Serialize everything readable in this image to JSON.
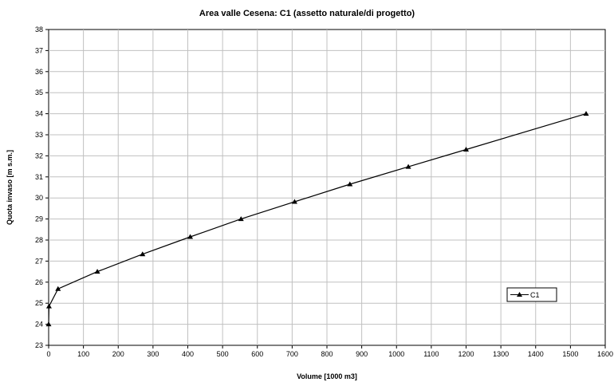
{
  "chart_data": {
    "type": "line",
    "title": "Area valle Cesena: C1 (assetto naturale/di progetto)",
    "xlabel": "Volume [1000 m3]",
    "ylabel": "Quota invaso [m s.m.]",
    "xlim": [
      0,
      1600
    ],
    "ylim": [
      23,
      38
    ],
    "x_ticks": [
      0,
      100,
      200,
      300,
      400,
      500,
      600,
      700,
      800,
      900,
      1000,
      1100,
      1200,
      1300,
      1400,
      1500,
      1600
    ],
    "y_ticks": [
      23,
      24,
      25,
      26,
      27,
      28,
      29,
      30,
      31,
      32,
      33,
      34,
      35,
      36,
      37,
      38
    ],
    "grid": true,
    "legend_position": "right",
    "series": [
      {
        "name": "C1",
        "color": "#000000",
        "marker": "triangle",
        "x": [
          0,
          1,
          27,
          140,
          270,
          407,
          553,
          707,
          866,
          1034,
          1200,
          1545
        ],
        "y": [
          24.0,
          24.85,
          25.68,
          26.5,
          27.33,
          28.15,
          29.0,
          29.82,
          30.65,
          31.48,
          32.3,
          34.0
        ]
      }
    ]
  }
}
